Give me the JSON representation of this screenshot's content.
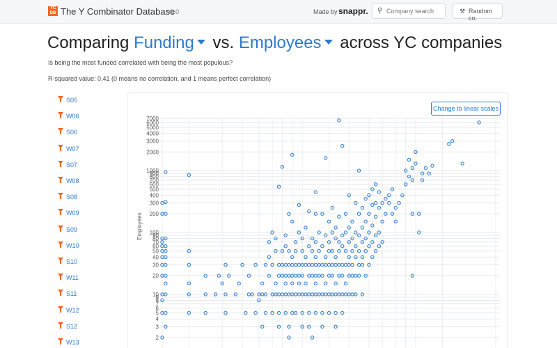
{
  "header": {
    "logo_text": "YC DB",
    "brand": "The Y Combinator Database",
    "version": "v2.0",
    "made_by": "Made by",
    "made_by_company": "snappr.",
    "search": {
      "placeholder": "Company search",
      "icon": "search-icon"
    },
    "random_label": "Random co.",
    "random_icon": "wrench-icon"
  },
  "title": {
    "prefix": "Comparing",
    "metric_x": "Funding",
    "middle": "vs.",
    "metric_y": "Employees",
    "suffix": "across YC companies",
    "accent": "#2b7bd0"
  },
  "subtitle": "Is being the most funded correlated with being the most populous?",
  "rsq": "R-squared value: 0.41 (0 means no correlation, and 1 means perfect correlation)",
  "batches": [
    "S05",
    "W06",
    "S06",
    "W07",
    "S07",
    "W08",
    "S08",
    "W09",
    "S09",
    "W10",
    "S10",
    "W11",
    "S11",
    "W12",
    "S12",
    "W13"
  ],
  "batch_icon": "funnel-icon",
  "filter_color": "#f26522",
  "scale_button": "Change to linear scales",
  "chart_data": {
    "type": "scatter",
    "ylabel": "Employees",
    "y_scale": "log",
    "x_scale": "log",
    "grid": true,
    "point_color": "#2b7bd0",
    "y_ticks": [
      "2",
      "3",
      "4",
      "5",
      "6",
      "7",
      "8",
      "9",
      "10",
      "20",
      "30",
      "40",
      "50",
      "60",
      "70",
      "80",
      "90",
      "100",
      "200",
      "300",
      "400",
      "500",
      "600",
      "700",
      "800",
      "900",
      "1000",
      "2000",
      "3000",
      "4000",
      "5000",
      "6000",
      "7000"
    ],
    "points": [
      [
        0.0,
        2
      ],
      [
        0.0,
        5
      ],
      [
        0.0,
        8
      ],
      [
        0.0,
        10
      ],
      [
        0.0,
        20
      ],
      [
        0.0,
        30
      ],
      [
        0.0,
        40
      ],
      [
        0.0,
        50
      ],
      [
        0.0,
        60
      ],
      [
        0.0,
        70
      ],
      [
        0.0,
        80
      ],
      [
        0.0,
        200
      ],
      [
        0.0,
        300
      ],
      [
        0.01,
        5
      ],
      [
        0.01,
        3
      ],
      [
        0.01,
        10
      ],
      [
        0.01,
        15
      ],
      [
        0.01,
        20
      ],
      [
        0.01,
        30
      ],
      [
        0.01,
        40
      ],
      [
        0.01,
        50
      ],
      [
        0.01,
        60
      ],
      [
        0.01,
        80
      ],
      [
        0.01,
        200
      ],
      [
        0.01,
        310
      ],
      [
        0.01,
        950
      ],
      [
        0.08,
        5
      ],
      [
        0.08,
        10
      ],
      [
        0.08,
        15
      ],
      [
        0.08,
        30
      ],
      [
        0.08,
        50
      ],
      [
        0.08,
        850
      ],
      [
        0.13,
        5
      ],
      [
        0.13,
        10
      ],
      [
        0.13,
        20
      ],
      [
        0.16,
        10
      ],
      [
        0.17,
        20
      ],
      [
        0.18,
        15
      ],
      [
        0.19,
        5
      ],
      [
        0.19,
        10
      ],
      [
        0.19,
        30
      ],
      [
        0.2,
        20
      ],
      [
        0.22,
        10
      ],
      [
        0.23,
        15
      ],
      [
        0.24,
        30
      ],
      [
        0.25,
        5
      ],
      [
        0.26,
        10
      ],
      [
        0.26,
        20
      ],
      [
        0.27,
        10
      ],
      [
        0.28,
        5
      ],
      [
        0.28,
        30
      ],
      [
        0.29,
        10
      ],
      [
        0.29,
        8
      ],
      [
        0.3,
        10
      ],
      [
        0.3,
        15
      ],
      [
        0.3,
        3
      ],
      [
        0.31,
        5
      ],
      [
        0.31,
        30
      ],
      [
        0.31,
        10
      ],
      [
        0.32,
        20
      ],
      [
        0.32,
        40
      ],
      [
        0.32,
        70
      ],
      [
        0.33,
        5
      ],
      [
        0.33,
        10
      ],
      [
        0.33,
        30
      ],
      [
        0.33,
        100
      ],
      [
        0.34,
        10
      ],
      [
        0.34,
        15
      ],
      [
        0.34,
        50
      ],
      [
        0.34,
        80
      ],
      [
        0.35,
        5
      ],
      [
        0.35,
        10
      ],
      [
        0.35,
        20
      ],
      [
        0.35,
        30
      ],
      [
        0.35,
        3
      ],
      [
        0.35,
        550
      ],
      [
        0.36,
        10
      ],
      [
        0.36,
        20
      ],
      [
        0.36,
        30
      ],
      [
        0.36,
        50
      ],
      [
        0.36,
        1150
      ],
      [
        0.37,
        5
      ],
      [
        0.37,
        10
      ],
      [
        0.37,
        15
      ],
      [
        0.37,
        20
      ],
      [
        0.37,
        30
      ],
      [
        0.37,
        60
      ],
      [
        0.37,
        90
      ],
      [
        0.38,
        10
      ],
      [
        0.38,
        20
      ],
      [
        0.38,
        30
      ],
      [
        0.38,
        50
      ],
      [
        0.38,
        200
      ],
      [
        0.38,
        2
      ],
      [
        0.38,
        3
      ],
      [
        0.39,
        5
      ],
      [
        0.39,
        10
      ],
      [
        0.39,
        15
      ],
      [
        0.39,
        20
      ],
      [
        0.39,
        30
      ],
      [
        0.39,
        40
      ],
      [
        0.39,
        150
      ],
      [
        0.39,
        1800
      ],
      [
        0.4,
        5
      ],
      [
        0.4,
        10
      ],
      [
        0.4,
        20
      ],
      [
        0.4,
        30
      ],
      [
        0.4,
        50
      ],
      [
        0.4,
        70
      ],
      [
        0.41,
        10
      ],
      [
        0.41,
        15
      ],
      [
        0.41,
        20
      ],
      [
        0.41,
        30
      ],
      [
        0.41,
        100
      ],
      [
        0.41,
        280
      ],
      [
        0.42,
        5
      ],
      [
        0.42,
        10
      ],
      [
        0.42,
        20
      ],
      [
        0.42,
        30
      ],
      [
        0.42,
        50
      ],
      [
        0.42,
        80
      ],
      [
        0.42,
        3
      ],
      [
        0.43,
        10
      ],
      [
        0.43,
        15
      ],
      [
        0.43,
        30
      ],
      [
        0.43,
        40
      ],
      [
        0.43,
        120
      ],
      [
        0.44,
        5
      ],
      [
        0.44,
        10
      ],
      [
        0.44,
        20
      ],
      [
        0.44,
        30
      ],
      [
        0.44,
        60
      ],
      [
        0.44,
        220
      ],
      [
        0.44,
        3
      ],
      [
        0.45,
        10
      ],
      [
        0.45,
        20
      ],
      [
        0.45,
        30
      ],
      [
        0.45,
        50
      ],
      [
        0.45,
        80
      ],
      [
        0.45,
        2
      ],
      [
        0.46,
        5
      ],
      [
        0.46,
        10
      ],
      [
        0.46,
        15
      ],
      [
        0.46,
        20
      ],
      [
        0.46,
        30
      ],
      [
        0.46,
        40
      ],
      [
        0.46,
        70
      ],
      [
        0.46,
        450
      ],
      [
        0.46,
        200
      ],
      [
        0.47,
        10
      ],
      [
        0.47,
        20
      ],
      [
        0.47,
        30
      ],
      [
        0.47,
        50
      ],
      [
        0.47,
        100
      ],
      [
        0.48,
        5
      ],
      [
        0.48,
        10
      ],
      [
        0.48,
        20
      ],
      [
        0.48,
        30
      ],
      [
        0.48,
        60
      ],
      [
        0.48,
        200
      ],
      [
        0.48,
        3
      ],
      [
        0.49,
        10
      ],
      [
        0.49,
        15
      ],
      [
        0.49,
        30
      ],
      [
        0.49,
        40
      ],
      [
        0.49,
        90
      ],
      [
        0.49,
        1600
      ],
      [
        0.5,
        5
      ],
      [
        0.5,
        10
      ],
      [
        0.5,
        20
      ],
      [
        0.5,
        30
      ],
      [
        0.5,
        50
      ],
      [
        0.5,
        70
      ],
      [
        0.5,
        150
      ],
      [
        0.51,
        10
      ],
      [
        0.51,
        20
      ],
      [
        0.51,
        30
      ],
      [
        0.51,
        50
      ],
      [
        0.51,
        100
      ],
      [
        0.51,
        250
      ],
      [
        0.52,
        5
      ],
      [
        0.52,
        10
      ],
      [
        0.52,
        15
      ],
      [
        0.52,
        30
      ],
      [
        0.52,
        40
      ],
      [
        0.52,
        80
      ],
      [
        0.52,
        120
      ],
      [
        0.52,
        3
      ],
      [
        0.53,
        10
      ],
      [
        0.53,
        20
      ],
      [
        0.53,
        30
      ],
      [
        0.53,
        50
      ],
      [
        0.53,
        70
      ],
      [
        0.53,
        180
      ],
      [
        0.53,
        6500
      ],
      [
        0.54,
        5
      ],
      [
        0.54,
        10
      ],
      [
        0.54,
        20
      ],
      [
        0.54,
        30
      ],
      [
        0.54,
        60
      ],
      [
        0.54,
        90
      ],
      [
        0.54,
        2500
      ],
      [
        0.55,
        10
      ],
      [
        0.55,
        15
      ],
      [
        0.55,
        30
      ],
      [
        0.55,
        50
      ],
      [
        0.55,
        100
      ],
      [
        0.55,
        200
      ],
      [
        0.56,
        10
      ],
      [
        0.56,
        20
      ],
      [
        0.56,
        30
      ],
      [
        0.56,
        40
      ],
      [
        0.56,
        70
      ],
      [
        0.56,
        120
      ],
      [
        0.56,
        400
      ],
      [
        0.57,
        10
      ],
      [
        0.57,
        20
      ],
      [
        0.57,
        30
      ],
      [
        0.57,
        50
      ],
      [
        0.57,
        80
      ],
      [
        0.57,
        150
      ],
      [
        0.58,
        10
      ],
      [
        0.58,
        20
      ],
      [
        0.58,
        40
      ],
      [
        0.58,
        60
      ],
      [
        0.58,
        100
      ],
      [
        0.58,
        300
      ],
      [
        0.59,
        20
      ],
      [
        0.59,
        30
      ],
      [
        0.59,
        50
      ],
      [
        0.59,
        90
      ],
      [
        0.59,
        200
      ],
      [
        0.59,
        1000
      ],
      [
        0.6,
        10
      ],
      [
        0.6,
        30
      ],
      [
        0.6,
        40
      ],
      [
        0.6,
        70
      ],
      [
        0.6,
        120
      ],
      [
        0.6,
        250
      ],
      [
        0.61,
        20
      ],
      [
        0.61,
        50
      ],
      [
        0.61,
        80
      ],
      [
        0.61,
        150
      ],
      [
        0.61,
        350
      ],
      [
        0.62,
        30
      ],
      [
        0.62,
        60
      ],
      [
        0.62,
        100
      ],
      [
        0.62,
        200
      ],
      [
        0.62,
        400
      ],
      [
        0.63,
        40
      ],
      [
        0.63,
        70
      ],
      [
        0.63,
        130
      ],
      [
        0.63,
        280
      ],
      [
        0.63,
        500
      ],
      [
        0.64,
        50
      ],
      [
        0.64,
        90
      ],
      [
        0.64,
        180
      ],
      [
        0.64,
        300
      ],
      [
        0.64,
        600
      ],
      [
        0.65,
        60
      ],
      [
        0.65,
        100
      ],
      [
        0.65,
        250
      ],
      [
        0.65,
        450
      ],
      [
        0.66,
        70
      ],
      [
        0.66,
        150
      ],
      [
        0.66,
        300
      ],
      [
        0.67,
        200
      ],
      [
        0.67,
        350
      ],
      [
        0.68,
        300
      ],
      [
        0.68,
        400
      ],
      [
        0.69,
        200
      ],
      [
        0.69,
        500
      ],
      [
        0.7,
        150
      ],
      [
        0.7,
        250
      ],
      [
        0.71,
        300
      ],
      [
        0.72,
        400
      ],
      [
        0.73,
        600
      ],
      [
        0.73,
        1000
      ],
      [
        0.74,
        800
      ],
      [
        0.74,
        1500
      ],
      [
        0.75,
        700
      ],
      [
        0.75,
        1100
      ],
      [
        0.75,
        200
      ],
      [
        0.75,
        20
      ],
      [
        0.76,
        1300
      ],
      [
        0.76,
        2000
      ],
      [
        0.77,
        100
      ],
      [
        0.77,
        200
      ],
      [
        0.78,
        700
      ],
      [
        0.78,
        900
      ],
      [
        0.79,
        1100
      ],
      [
        0.8,
        900
      ],
      [
        0.81,
        1200
      ],
      [
        0.86,
        2700
      ],
      [
        0.87,
        3000
      ],
      [
        0.9,
        1300
      ],
      [
        0.95,
        6000
      ]
    ]
  }
}
